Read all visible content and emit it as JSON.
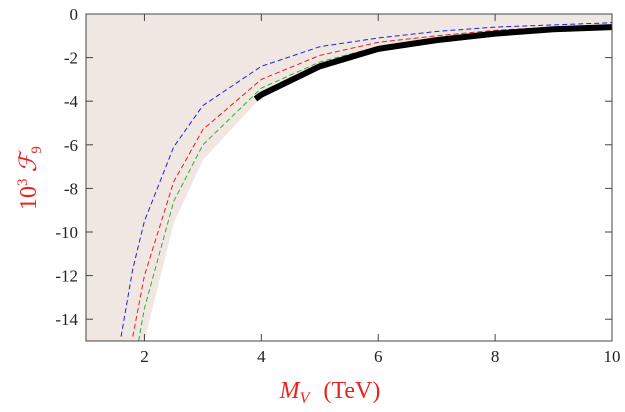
{
  "chart_data": {
    "type": "line",
    "xlabel": [
      "M",
      "V",
      "(TeV)"
    ],
    "ylabel": [
      "10",
      "3",
      "ℱ",
      "9"
    ],
    "label_color": "#e8231e",
    "xlim": [
      1,
      10
    ],
    "ylim": [
      -15,
      0
    ],
    "xticks": [
      2,
      4,
      6,
      8,
      10
    ],
    "yticks": [
      0,
      -2,
      -4,
      -6,
      -8,
      -10,
      -12,
      -14
    ],
    "area": {
      "color": "#f0e7e2",
      "x": [
        2,
        2.5,
        3,
        4,
        5,
        6,
        7,
        8,
        9,
        10
      ],
      "values": [
        -15,
        -9.6,
        -6.7,
        -3.8,
        -2.4,
        -1.7,
        -1.2,
        -0.9,
        -0.7,
        -0.6
      ]
    },
    "series": [
      {
        "color": "#2020e0",
        "dashed": true,
        "width": 1,
        "x": [
          1.6,
          1.8,
          2,
          2.5,
          3,
          4,
          5,
          6,
          7,
          8,
          9,
          10
        ],
        "values": [
          -14.8,
          -11.7,
          -9.5,
          -6.1,
          -4.2,
          -2.4,
          -1.5,
          -1.1,
          -0.8,
          -0.6,
          -0.5,
          -0.4
        ]
      },
      {
        "color": "#e02020",
        "dashed": true,
        "width": 1,
        "x": [
          1.8,
          2,
          2.5,
          3,
          4,
          5,
          6,
          7,
          8,
          9,
          10
        ],
        "values": [
          -14.8,
          -12,
          -7.7,
          -5.3,
          -3,
          -1.9,
          -1.3,
          -1,
          -0.75,
          -0.6,
          -0.5
        ]
      },
      {
        "color": "#30b030",
        "dashed": true,
        "width": 1,
        "x": [
          1.9,
          2,
          2.5,
          3,
          4,
          5,
          6,
          7,
          8,
          9,
          10
        ],
        "values": [
          -15,
          -13.5,
          -8.6,
          -6,
          -3.4,
          -2.2,
          -1.5,
          -1.1,
          -0.8,
          -0.7,
          -0.5
        ]
      },
      {
        "color": "#000000",
        "dashed": false,
        "width": 6,
        "x": [
          3.9,
          4,
          5,
          6,
          7,
          8,
          9,
          10
        ],
        "values": [
          -3.9,
          -3.7,
          -2.4,
          -1.6,
          -1.2,
          -0.9,
          -0.7,
          -0.6
        ]
      }
    ]
  }
}
